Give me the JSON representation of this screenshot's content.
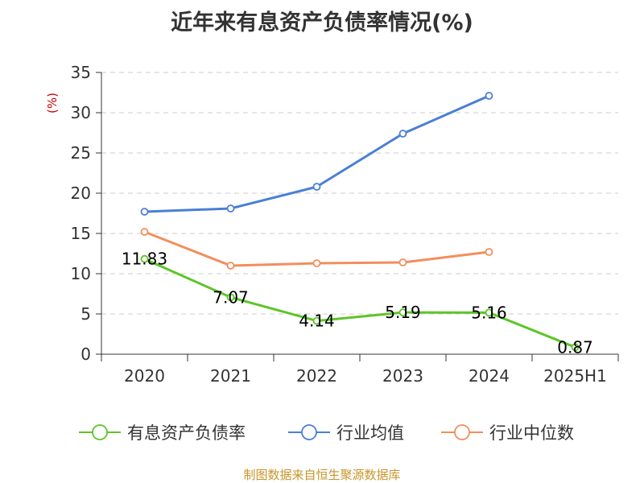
{
  "chart_data": {
    "type": "line",
    "title": "近年来有息资产负债率情况(%)",
    "ylabel": "(%)",
    "xlabel": "",
    "categories": [
      "2020",
      "2021",
      "2022",
      "2023",
      "2024",
      "2025H1"
    ],
    "ylim": [
      0,
      35
    ],
    "yticks": [
      0,
      5,
      10,
      15,
      20,
      25,
      30,
      35
    ],
    "grid": true,
    "legend_position": "bottom",
    "series": [
      {
        "name": "有息资产负债率",
        "color": "#5ec528",
        "values": [
          11.83,
          7.07,
          4.14,
          5.19,
          5.16,
          0.87
        ],
        "labels": [
          "11.83",
          "7.07",
          "4.14",
          "5.19",
          "5.16",
          "0.87"
        ]
      },
      {
        "name": "行业均值",
        "color": "#4a7fd6",
        "values": [
          17.7,
          18.1,
          20.8,
          27.4,
          32.1,
          null
        ]
      },
      {
        "name": "行业中位数",
        "color": "#f28e5d",
        "values": [
          15.2,
          11.0,
          11.3,
          11.4,
          12.7,
          null
        ]
      }
    ]
  },
  "source_note": "制图数据来自恒生聚源数据库",
  "colors": {
    "ylabel": "#cc0000",
    "source_note": "#c8952a",
    "grid": "#cccccc",
    "axis": "#333333"
  }
}
